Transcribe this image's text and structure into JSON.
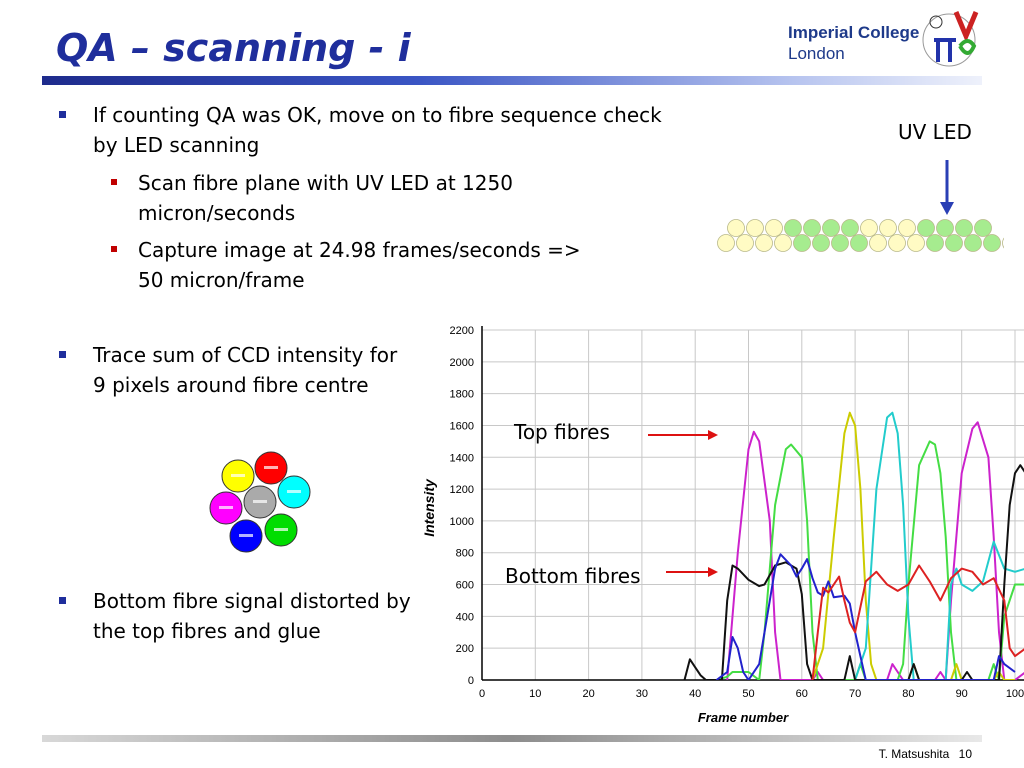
{
  "slide": {
    "title": "QA – scanning - i",
    "logo_line1": "Imperial College",
    "logo_line2": "London",
    "footer_author": "T. Matsushita",
    "footer_page": "10"
  },
  "bullets": {
    "b1": "If counting QA was OK, move on to fibre sequence check by LED scanning",
    "b1_sub1": "Scan fibre plane with UV LED at 1250 micron/seconds",
    "b1_sub2": "Capture image at 24.98 frames/seconds => 50 micron/frame",
    "b2": "Trace sum of CCD intensity for 9 pixels around fibre centre",
    "b3": "Bottom fibre signal distorted by the top fibres and glue"
  },
  "diagram": {
    "uv_label": "UV LED",
    "top_row_colors": [
      "#fffbc4",
      "#fffbc4",
      "#fffbc4",
      "#a6ec8f",
      "#a6ec8f",
      "#a6ec8f",
      "#a6ec8f",
      "#fffbc4",
      "#fffbc4",
      "#fffbc4",
      "#a6ec8f",
      "#a6ec8f",
      "#a6ec8f",
      "#a6ec8f"
    ],
    "bottom_row_colors": [
      "#fffbc4",
      "#fffbc4",
      "#fffbc4",
      "#fffbc4",
      "#a6ec8f",
      "#a6ec8f",
      "#a6ec8f",
      "#a6ec8f",
      "#fffbc4",
      "#fffbc4",
      "#fffbc4",
      "#a6ec8f",
      "#a6ec8f",
      "#a6ec8f",
      "#a6ec8f",
      "#ffffff"
    ],
    "cluster_colors": [
      "#ffff00",
      "#ff0000",
      "#ff00ff",
      "#aaaaaa",
      "#00ffff",
      "#0000ff",
      "#00dd00"
    ]
  },
  "annotations": {
    "top_fibres": "Top fibres",
    "bottom_fibres": "Bottom fibres"
  },
  "chart_data": {
    "type": "line",
    "xlabel": "Frame number",
    "ylabel": "Intensity",
    "xlim": [
      0,
      100
    ],
    "ylim": [
      0,
      2200
    ],
    "xticks": [
      0,
      10,
      20,
      30,
      40,
      50,
      60,
      70,
      80,
      90,
      100
    ],
    "yticks": [
      0,
      200,
      400,
      600,
      800,
      1000,
      1200,
      1400,
      1600,
      1800,
      2000,
      2200
    ],
    "grid": true,
    "series": [
      {
        "color": "#cc22cc",
        "points": [
          [
            46,
            0
          ],
          [
            48,
            800
          ],
          [
            50,
            1450
          ],
          [
            51,
            1560
          ],
          [
            52,
            1500
          ],
          [
            54,
            1000
          ],
          [
            55,
            300
          ],
          [
            56,
            0
          ],
          [
            62,
            0
          ],
          [
            63,
            50
          ],
          [
            64,
            0
          ],
          [
            76,
            0
          ],
          [
            77,
            100
          ],
          [
            78,
            50
          ],
          [
            79,
            0
          ],
          [
            85,
            0
          ],
          [
            86,
            50
          ],
          [
            87,
            0
          ],
          [
            88,
            500
          ],
          [
            90,
            1300
          ],
          [
            92,
            1580
          ],
          [
            93,
            1620
          ],
          [
            95,
            1400
          ],
          [
            96,
            900
          ],
          [
            97,
            300
          ],
          [
            98,
            0
          ],
          [
            100,
            0
          ],
          [
            102,
            50
          ]
        ]
      },
      {
        "color": "#44dd44",
        "points": [
          [
            44,
            0
          ],
          [
            46,
            20
          ],
          [
            47,
            50
          ],
          [
            50,
            50
          ],
          [
            52,
            0
          ],
          [
            53,
            300
          ],
          [
            55,
            1100
          ],
          [
            57,
            1450
          ],
          [
            58,
            1480
          ],
          [
            60,
            1400
          ],
          [
            61,
            1000
          ],
          [
            62,
            300
          ],
          [
            63,
            0
          ],
          [
            70,
            0
          ],
          [
            71,
            100
          ],
          [
            72,
            0
          ],
          [
            78,
            0
          ],
          [
            79,
            100
          ],
          [
            80,
            600
          ],
          [
            82,
            1350
          ],
          [
            84,
            1500
          ],
          [
            85,
            1480
          ],
          [
            86,
            1300
          ],
          [
            87,
            900
          ],
          [
            88,
            300
          ],
          [
            89,
            0
          ],
          [
            95,
            0
          ],
          [
            96,
            100
          ],
          [
            97,
            0
          ],
          [
            98,
            400
          ],
          [
            100,
            600
          ],
          [
            102,
            600
          ]
        ]
      },
      {
        "color": "#cccc00",
        "points": [
          [
            62,
            0
          ],
          [
            64,
            200
          ],
          [
            66,
            900
          ],
          [
            68,
            1550
          ],
          [
            69,
            1680
          ],
          [
            70,
            1600
          ],
          [
            71,
            1200
          ],
          [
            72,
            500
          ],
          [
            73,
            100
          ],
          [
            74,
            0
          ],
          [
            80,
            0
          ],
          [
            81,
            100
          ],
          [
            82,
            0
          ],
          [
            88,
            0
          ],
          [
            89,
            100
          ],
          [
            90,
            0
          ],
          [
            96,
            0
          ],
          [
            97,
            50
          ],
          [
            98,
            0
          ],
          [
            100,
            0
          ]
        ]
      },
      {
        "color": "#22cccc",
        "points": [
          [
            70,
            0
          ],
          [
            72,
            200
          ],
          [
            73,
            700
          ],
          [
            74,
            1200
          ],
          [
            76,
            1650
          ],
          [
            77,
            1680
          ],
          [
            78,
            1550
          ],
          [
            79,
            1100
          ],
          [
            80,
            400
          ],
          [
            81,
            0
          ],
          [
            87,
            0
          ],
          [
            88,
            600
          ],
          [
            89,
            700
          ],
          [
            90,
            600
          ],
          [
            92,
            560
          ],
          [
            94,
            620
          ],
          [
            96,
            870
          ],
          [
            98,
            700
          ],
          [
            100,
            680
          ],
          [
            102,
            700
          ]
        ]
      },
      {
        "color": "#111111",
        "points": [
          [
            38,
            0
          ],
          [
            39,
            130
          ],
          [
            40,
            80
          ],
          [
            41,
            30
          ],
          [
            42,
            0
          ],
          [
            45,
            0
          ],
          [
            46,
            500
          ],
          [
            47,
            720
          ],
          [
            48,
            700
          ],
          [
            50,
            630
          ],
          [
            52,
            590
          ],
          [
            53,
            600
          ],
          [
            55,
            720
          ],
          [
            57,
            740
          ],
          [
            59,
            700
          ],
          [
            60,
            540
          ],
          [
            61,
            100
          ],
          [
            62,
            0
          ],
          [
            68,
            0
          ],
          [
            69,
            150
          ],
          [
            70,
            0
          ],
          [
            80,
            0
          ],
          [
            81,
            100
          ],
          [
            82,
            0
          ],
          [
            90,
            0
          ],
          [
            91,
            50
          ],
          [
            92,
            0
          ],
          [
            97,
            0
          ],
          [
            98,
            600
          ],
          [
            99,
            1100
          ],
          [
            100,
            1300
          ],
          [
            101,
            1350
          ],
          [
            102,
            1300
          ]
        ]
      },
      {
        "color": "#2222cc",
        "points": [
          [
            44,
            0
          ],
          [
            46,
            50
          ],
          [
            47,
            270
          ],
          [
            48,
            200
          ],
          [
            49,
            50
          ],
          [
            50,
            0
          ],
          [
            52,
            100
          ],
          [
            54,
            500
          ],
          [
            55,
            700
          ],
          [
            56,
            790
          ],
          [
            58,
            720
          ],
          [
            59,
            650
          ],
          [
            60,
            700
          ],
          [
            61,
            760
          ],
          [
            62,
            640
          ],
          [
            63,
            550
          ],
          [
            64,
            530
          ],
          [
            65,
            620
          ],
          [
            66,
            520
          ],
          [
            68,
            530
          ],
          [
            69,
            480
          ],
          [
            70,
            300
          ],
          [
            71,
            150
          ],
          [
            72,
            0
          ],
          [
            96,
            0
          ],
          [
            97,
            150
          ],
          [
            98,
            100
          ],
          [
            100,
            50
          ]
        ]
      },
      {
        "color": "#dd2222",
        "points": [
          [
            62,
            0
          ],
          [
            63,
            300
          ],
          [
            64,
            580
          ],
          [
            65,
            550
          ],
          [
            67,
            650
          ],
          [
            68,
            500
          ],
          [
            69,
            360
          ],
          [
            70,
            300
          ],
          [
            72,
            620
          ],
          [
            74,
            680
          ],
          [
            76,
            600
          ],
          [
            78,
            560
          ],
          [
            80,
            600
          ],
          [
            82,
            720
          ],
          [
            84,
            620
          ],
          [
            86,
            500
          ],
          [
            88,
            640
          ],
          [
            90,
            700
          ],
          [
            92,
            680
          ],
          [
            94,
            600
          ],
          [
            96,
            640
          ],
          [
            98,
            500
          ],
          [
            99,
            200
          ],
          [
            100,
            150
          ],
          [
            102,
            200
          ]
        ]
      }
    ]
  }
}
